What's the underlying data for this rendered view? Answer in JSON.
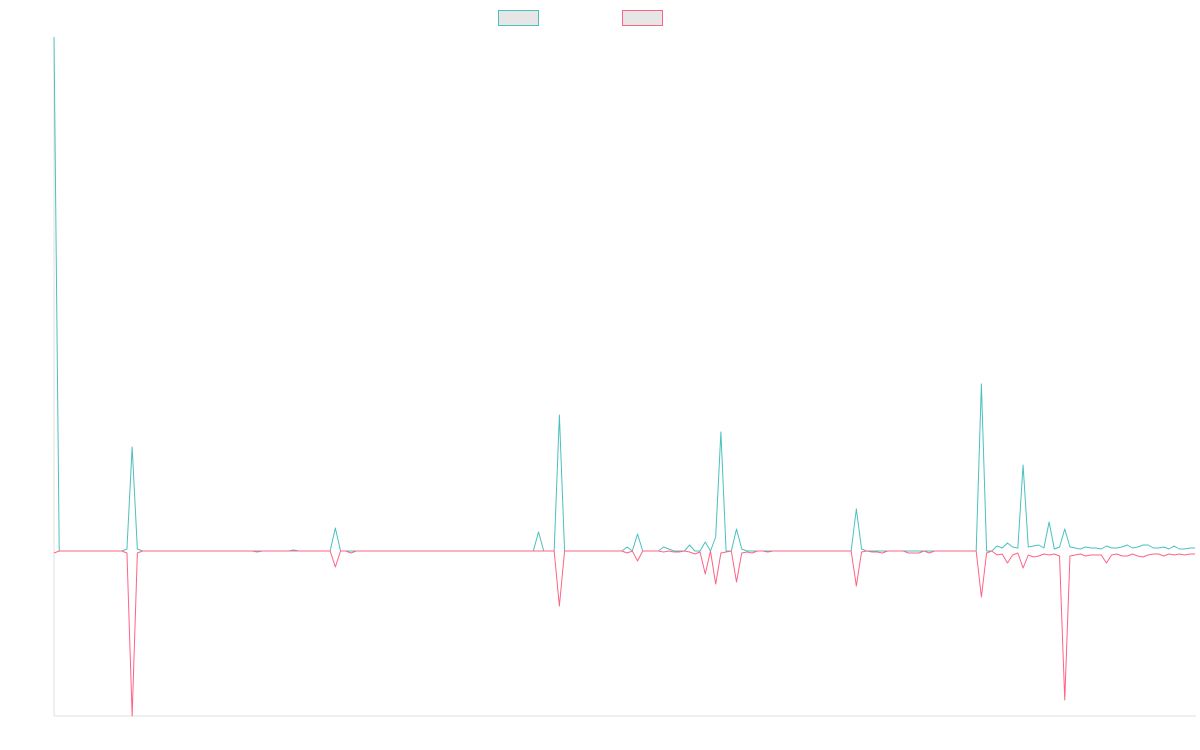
{
  "chart_data": {
    "type": "line",
    "categories": [
      null,
      null,
      null,
      null,
      null,
      null,
      null,
      null,
      null,
      null,
      null,
      null,
      null,
      null,
      null,
      null,
      null,
      null,
      null,
      null,
      null,
      null,
      null,
      null,
      null,
      null,
      null,
      null,
      null,
      null,
      null,
      null,
      null,
      null,
      null,
      null,
      null,
      null,
      null,
      null,
      null,
      null,
      null,
      null,
      null,
      null,
      null,
      null,
      null,
      null,
      null,
      null,
      null,
      null,
      null,
      null,
      null,
      null,
      null,
      null,
      null,
      null,
      null,
      null,
      null,
      null,
      null,
      null,
      null,
      null,
      null,
      null,
      null,
      null,
      null,
      null,
      null,
      null,
      null,
      null,
      null,
      null,
      null,
      null,
      null,
      null,
      null,
      null,
      null,
      null,
      null,
      null,
      null,
      null,
      null,
      null,
      null,
      null,
      null,
      null,
      null,
      null,
      null,
      null,
      null,
      null,
      null,
      null,
      null,
      null,
      null,
      null,
      null,
      null,
      null,
      null,
      null,
      null,
      null,
      null,
      null,
      null,
      null,
      null,
      null,
      null,
      null,
      null,
      null,
      null,
      null,
      null,
      null,
      null,
      null,
      null,
      null,
      null,
      null,
      null,
      null,
      null,
      null,
      null,
      null,
      null,
      null,
      null,
      null,
      null,
      null,
      null,
      null,
      null,
      null,
      null,
      null,
      null,
      null,
      null,
      null,
      null,
      null,
      null,
      null,
      null,
      null,
      null,
      null,
      null,
      null,
      null,
      null,
      null,
      null,
      null,
      null,
      null,
      null,
      null,
      null,
      null,
      null,
      null,
      null,
      null,
      null,
      null,
      null,
      null,
      null,
      null,
      null,
      null,
      null,
      null,
      null,
      null,
      null,
      null,
      null,
      null,
      null,
      null,
      null,
      null,
      null,
      null,
      null,
      null,
      null,
      null,
      null,
      null,
      null,
      null,
      null,
      null,
      null,
      null
    ],
    "series": [
      {
        "color": "#4bc0c0",
        "values": [
          514,
          0,
          0,
          0,
          0,
          0,
          0,
          0,
          0,
          0,
          0,
          0,
          0,
          0,
          2,
          104,
          2,
          0,
          0,
          0,
          0,
          0,
          0,
          0,
          0,
          0,
          0,
          0,
          0,
          0,
          0,
          0,
          0,
          0,
          0,
          0,
          0,
          0,
          0,
          0,
          0,
          0,
          0,
          0,
          0,
          0,
          0,
          0,
          0,
          0,
          0,
          0,
          0,
          0,
          23,
          0,
          0,
          0,
          0,
          0,
          0,
          0,
          0,
          0,
          0,
          0,
          0,
          0,
          0,
          0,
          0,
          0,
          0,
          0,
          0,
          0,
          0,
          0,
          0,
          0,
          0,
          0,
          0,
          0,
          0,
          0,
          0,
          0,
          0,
          0,
          0,
          0,
          0,
          19,
          0,
          0,
          0,
          136,
          0,
          0,
          0,
          0,
          0,
          0,
          0,
          0,
          0,
          0,
          0,
          0,
          4,
          0,
          17,
          0,
          0,
          0,
          0,
          4,
          2,
          0,
          0,
          0,
          6,
          0,
          0,
          9,
          0,
          14,
          119,
          0,
          0,
          22,
          2,
          0,
          0,
          0,
          0,
          0,
          0,
          0,
          0,
          0,
          0,
          0,
          0,
          0,
          0,
          0,
          0,
          0,
          0,
          0,
          0,
          0,
          42,
          2,
          0,
          0,
          0,
          0,
          0,
          0,
          0,
          0,
          0,
          0,
          0,
          0,
          0,
          0,
          0,
          0,
          0,
          0,
          0,
          0,
          0,
          0,
          167,
          0,
          0,
          5,
          3,
          8,
          4,
          3,
          86,
          4,
          5,
          6,
          3,
          29,
          2,
          4,
          22,
          4,
          3,
          2,
          4,
          3,
          3,
          2,
          5,
          3,
          3,
          4,
          6,
          3,
          4,
          6,
          6,
          3,
          3,
          4,
          2,
          5,
          2,
          2,
          3,
          3
        ]
      },
      {
        "color": "#ff6384",
        "values": [
          -2,
          0,
          0,
          0,
          0,
          0,
          0,
          0,
          0,
          0,
          0,
          0,
          0,
          0,
          -2,
          -165,
          -2,
          0,
          0,
          0,
          0,
          0,
          0,
          0,
          0,
          0,
          0,
          0,
          0,
          0,
          0,
          0,
          0,
          0,
          0,
          0,
          0,
          0,
          0,
          -1,
          0,
          0,
          0,
          0,
          0,
          0,
          1,
          0,
          0,
          0,
          0,
          0,
          0,
          0,
          -16,
          0,
          0,
          -2,
          0,
          0,
          0,
          0,
          0,
          0,
          0,
          0,
          0,
          0,
          0,
          0,
          0,
          0,
          0,
          0,
          0,
          0,
          0,
          0,
          0,
          0,
          0,
          0,
          0,
          0,
          0,
          0,
          0,
          0,
          0,
          0,
          0,
          0,
          0,
          0,
          0,
          0,
          0,
          -55,
          0,
          0,
          0,
          0,
          0,
          0,
          0,
          0,
          0,
          0,
          0,
          0,
          -2,
          0,
          -10,
          0,
          0,
          0,
          0,
          -1,
          0,
          -1,
          -1,
          0,
          -1,
          -3,
          -1,
          -23,
          0,
          -33,
          -2,
          -1,
          0,
          -31,
          -2,
          -1,
          -2,
          0,
          0,
          -1,
          0,
          0,
          0,
          0,
          0,
          0,
          0,
          0,
          0,
          0,
          0,
          0,
          0,
          0,
          0,
          0,
          -35,
          -1,
          0,
          -1,
          -1,
          -2,
          0,
          0,
          0,
          0,
          -2,
          -2,
          -2,
          0,
          -2,
          0,
          0,
          0,
          0,
          0,
          0,
          0,
          0,
          0,
          -46,
          -2,
          0,
          -4,
          -3,
          -12,
          -4,
          -2,
          -17,
          -4,
          -6,
          -5,
          -3,
          -4,
          -3,
          -5,
          -149,
          -5,
          -4,
          -3,
          -5,
          -4,
          -4,
          -4,
          -12,
          -4,
          -3,
          -5,
          -5,
          -3,
          -5,
          -6,
          -4,
          -3,
          -3,
          -5,
          -3,
          -4,
          -3,
          -4,
          -3,
          -3
        ]
      }
    ],
    "ylim": [
      -165,
      514
    ],
    "legend": "top"
  }
}
